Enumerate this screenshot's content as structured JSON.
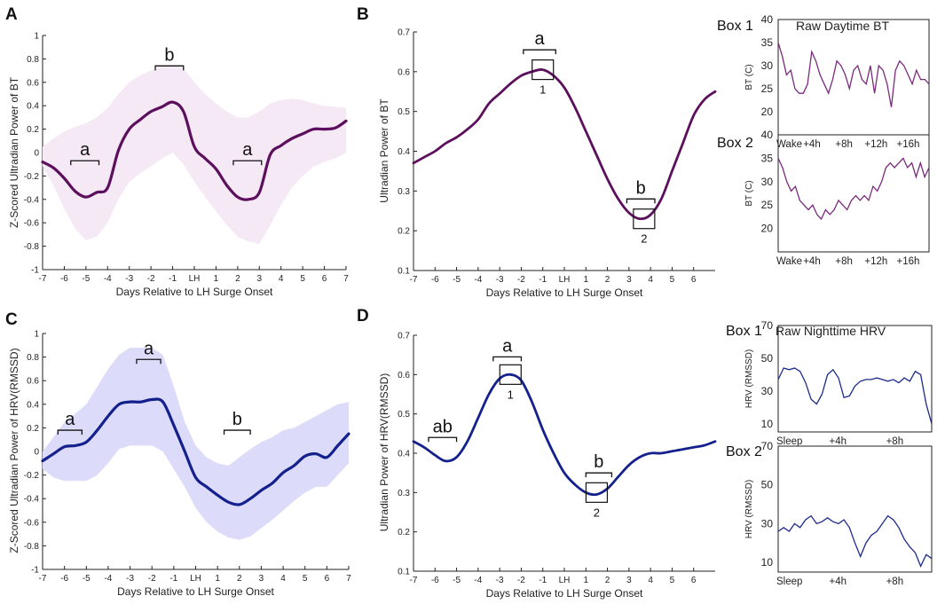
{
  "colors": {
    "bt_line": "#5b0f5c",
    "bt_band": "#f5e9f6",
    "hrv_line": "#14208c",
    "hrv_band": "#dcdcfa",
    "inset_bt": "#7a2a7c",
    "inset_hrv": "#1c2a8c"
  },
  "panel_letters": [
    "A",
    "B",
    "C",
    "D"
  ],
  "chart_data": [
    {
      "id": "A",
      "type": "line",
      "xlabel": "Days Relative to LH Surge Onset",
      "ylabel": "Z-Scored Ultradian Power of BT",
      "xticks": [
        "-7",
        "-6",
        "-5",
        "-4",
        "-3",
        "-2",
        "-1",
        "LH",
        "1",
        "2",
        "3",
        "4",
        "5",
        "6",
        "7"
      ],
      "yticks": [
        "-1",
        "-0.8",
        "-0.6",
        "-0.4",
        "-0.2",
        "0",
        "0.2",
        "0.4",
        "0.6",
        "0.8",
        "1"
      ],
      "xlim": [
        -7,
        7
      ],
      "ylim": [
        -1,
        1
      ],
      "x": [
        -7,
        -6.5,
        -6,
        -5.5,
        -5,
        -4.5,
        -4,
        -3.5,
        -3,
        -2.5,
        -2,
        -1.5,
        -1,
        -0.5,
        0,
        0.5,
        1,
        1.5,
        2,
        2.5,
        3,
        3.5,
        4,
        4.5,
        5,
        5.5,
        6,
        6.5,
        7
      ],
      "y": [
        -0.08,
        -0.13,
        -0.22,
        -0.33,
        -0.38,
        -0.34,
        -0.3,
        0.02,
        0.2,
        0.28,
        0.35,
        0.39,
        0.43,
        0.35,
        0.05,
        -0.05,
        -0.14,
        -0.28,
        -0.38,
        -0.4,
        -0.34,
        -0.02,
        0.06,
        0.12,
        0.16,
        0.2,
        0.2,
        0.21,
        0.27
      ],
      "upper": [
        0.05,
        0.12,
        0.18,
        0.22,
        0.25,
        0.3,
        0.38,
        0.5,
        0.6,
        0.66,
        0.7,
        0.74,
        0.75,
        0.72,
        0.6,
        0.5,
        0.42,
        0.35,
        0.3,
        0.3,
        0.35,
        0.42,
        0.45,
        0.46,
        0.45,
        0.42,
        0.4,
        0.39,
        0.38
      ],
      "lower": [
        -0.12,
        -0.28,
        -0.48,
        -0.65,
        -0.75,
        -0.72,
        -0.6,
        -0.4,
        -0.25,
        -0.18,
        -0.12,
        -0.05,
        0.0,
        -0.1,
        -0.25,
        -0.38,
        -0.5,
        -0.62,
        -0.72,
        -0.76,
        -0.78,
        -0.62,
        -0.45,
        -0.3,
        -0.2,
        -0.12,
        -0.08,
        -0.05,
        0.0
      ],
      "annotations": [
        {
          "label": "a",
          "x0": -5.7,
          "x1": -4.4,
          "y": -0.07
        },
        {
          "label": "b",
          "x0": -1.8,
          "x1": -0.5,
          "y": 0.74
        },
        {
          "label": "a",
          "x0": 1.8,
          "x1": 3.1,
          "y": -0.07
        }
      ]
    },
    {
      "id": "B",
      "type": "line",
      "xlabel": "Days Relative to LH Surge Onset",
      "ylabel": "Ultradian Power of BT",
      "xticks": [
        "-7",
        "-6",
        "-5",
        "-4",
        "-3",
        "-2",
        "-1",
        "LH",
        "1",
        "2",
        "3",
        "4",
        "5",
        "6"
      ],
      "yticks": [
        "0.1",
        "0.2",
        "0.3",
        "0.4",
        "0.5",
        "0.6",
        "0.7"
      ],
      "xlim": [
        -7,
        7
      ],
      "ylim": [
        0.1,
        0.7
      ],
      "x": [
        -7,
        -6.5,
        -6,
        -5.5,
        -5,
        -4.5,
        -4,
        -3.5,
        -3,
        -2.5,
        -2,
        -1.5,
        -1,
        -0.5,
        0,
        0.5,
        1,
        1.5,
        2,
        2.5,
        3,
        3.5,
        4,
        4.5,
        5,
        5.5,
        6,
        6.5,
        7
      ],
      "y": [
        0.37,
        0.385,
        0.4,
        0.42,
        0.435,
        0.455,
        0.48,
        0.52,
        0.545,
        0.57,
        0.59,
        0.6,
        0.605,
        0.59,
        0.56,
        0.51,
        0.45,
        0.39,
        0.33,
        0.28,
        0.245,
        0.23,
        0.24,
        0.28,
        0.35,
        0.42,
        0.49,
        0.53,
        0.55
      ],
      "annotations": [
        {
          "label": "a",
          "x0": -1.9,
          "x1": -0.4,
          "y": 0.655
        },
        {
          "label": "b",
          "x0": 2.9,
          "x1": 4.2,
          "y": 0.28
        }
      ],
      "boxes": [
        {
          "label": "1",
          "x": -1,
          "y": 0.605
        },
        {
          "label": "2",
          "x": 3.7,
          "y": 0.23
        }
      ]
    },
    {
      "id": "C",
      "type": "line",
      "xlabel": "Days Relative to LH Surge Onset",
      "ylabel": "Z-Scored Ultradian Power of HRV(RMSSD)",
      "xticks": [
        "-7",
        "-6",
        "-5",
        "-4",
        "-3",
        "-2",
        "-1",
        "LH",
        "1",
        "2",
        "3",
        "4",
        "5",
        "6",
        "7"
      ],
      "yticks": [
        "-1",
        "-0.8",
        "-0.6",
        "-0.4",
        "-0.2",
        "0",
        "0.2",
        "0.4",
        "0.6",
        "0.8",
        "1"
      ],
      "xlim": [
        -7,
        7
      ],
      "ylim": [
        -1,
        1
      ],
      "x": [
        -7,
        -6.5,
        -6,
        -5.5,
        -5,
        -4.5,
        -4,
        -3.5,
        -3,
        -2.5,
        -2,
        -1.5,
        -1,
        -0.5,
        0,
        0.5,
        1,
        1.5,
        2,
        2.5,
        3,
        3.5,
        4,
        4.5,
        5,
        5.5,
        6,
        6.5,
        7
      ],
      "y": [
        -0.08,
        -0.02,
        0.04,
        0.05,
        0.08,
        0.18,
        0.3,
        0.4,
        0.42,
        0.42,
        0.44,
        0.42,
        0.22,
        0.0,
        -0.22,
        -0.3,
        -0.37,
        -0.43,
        -0.45,
        -0.4,
        -0.33,
        -0.27,
        -0.18,
        -0.12,
        -0.04,
        -0.02,
        -0.05,
        0.05,
        0.15
      ],
      "upper": [
        0.0,
        0.12,
        0.25,
        0.32,
        0.4,
        0.55,
        0.7,
        0.82,
        0.88,
        0.88,
        0.88,
        0.82,
        0.55,
        0.25,
        0.05,
        -0.05,
        -0.1,
        -0.12,
        -0.05,
        0.02,
        0.08,
        0.12,
        0.18,
        0.2,
        0.25,
        0.3,
        0.35,
        0.4,
        0.42
      ],
      "lower": [
        -0.15,
        -0.22,
        -0.25,
        -0.25,
        -0.25,
        -0.2,
        -0.1,
        0.02,
        0.05,
        0.05,
        0.05,
        0.0,
        -0.15,
        -0.3,
        -0.48,
        -0.6,
        -0.68,
        -0.73,
        -0.75,
        -0.72,
        -0.65,
        -0.58,
        -0.5,
        -0.42,
        -0.35,
        -0.3,
        -0.3,
        -0.2,
        -0.1
      ],
      "annotations": [
        {
          "label": "a",
          "x0": -6.3,
          "x1": -5.2,
          "y": 0.18
        },
        {
          "label": "a",
          "x0": -2.7,
          "x1": -1.6,
          "y": 0.78
        },
        {
          "label": "b",
          "x0": 1.3,
          "x1": 2.5,
          "y": 0.18
        }
      ]
    },
    {
      "id": "D",
      "type": "line",
      "xlabel": "Days Relative to LH Surge Onset",
      "ylabel": "Ultradian Power of HRV(RMSSD)",
      "xticks": [
        "-7",
        "-6",
        "-5",
        "-4",
        "-3",
        "-2",
        "-1",
        "LH",
        "1",
        "2",
        "3",
        "4",
        "5",
        "6"
      ],
      "yticks": [
        "0.1",
        "0.2",
        "0.3",
        "0.4",
        "0.5",
        "0.6",
        "0.7"
      ],
      "xlim": [
        -7,
        7
      ],
      "ylim": [
        0.1,
        0.7
      ],
      "x": [
        -7,
        -6.5,
        -6,
        -5.5,
        -5,
        -4.5,
        -4,
        -3.5,
        -3,
        -2.5,
        -2,
        -1.5,
        -1,
        -0.5,
        0,
        0.5,
        1,
        1.5,
        2,
        2.5,
        3,
        3.5,
        4,
        4.5,
        5,
        5.5,
        6,
        6.5,
        7
      ],
      "y": [
        0.43,
        0.415,
        0.395,
        0.38,
        0.39,
        0.43,
        0.49,
        0.55,
        0.59,
        0.6,
        0.585,
        0.53,
        0.46,
        0.4,
        0.35,
        0.32,
        0.3,
        0.295,
        0.31,
        0.34,
        0.37,
        0.39,
        0.4,
        0.4,
        0.405,
        0.41,
        0.415,
        0.42,
        0.43
      ],
      "annotations": [
        {
          "label": "ab",
          "x0": -6.3,
          "x1": -5.0,
          "y": 0.44
        },
        {
          "label": "a",
          "x0": -3.3,
          "x1": -2.0,
          "y": 0.645
        },
        {
          "label": "b",
          "x0": 1.0,
          "x1": 2.2,
          "y": 0.35
        }
      ],
      "boxes": [
        {
          "label": "1",
          "x": -2.5,
          "y": 0.6
        },
        {
          "label": "2",
          "x": 1.5,
          "y": 0.3
        }
      ]
    }
  ],
  "insets": {
    "bt_title": "Raw Daytime BT",
    "hrv_title": "Raw Nighttime HRV",
    "bt_ylabel": "BT (C)",
    "hrv_ylabel": "HRV (RMSSD)",
    "bt_yticks": [
      "20",
      "25",
      "30",
      "35",
      "40"
    ],
    "hrv_yticks": [
      "10",
      "30",
      "50",
      "70"
    ],
    "bt_xticks": [
      "Wake",
      "+4h",
      "+8h",
      "+12h",
      "+16h"
    ],
    "hrv_xticks": [
      "Sleep",
      "+4h",
      "+8h"
    ],
    "bt_box1": {
      "label": "Box 1",
      "values": [
        35,
        32,
        28,
        29,
        25,
        24,
        24,
        26,
        33,
        31,
        28,
        26,
        24,
        27,
        31,
        30,
        28,
        25,
        29,
        30,
        27,
        26,
        30,
        24,
        30,
        29,
        26,
        21,
        29,
        31,
        30,
        28,
        26,
        29,
        27,
        27,
        26
      ]
    },
    "bt_box2": {
      "label": "Box 2",
      "values": [
        35,
        33,
        30,
        28,
        29,
        26,
        25,
        24,
        25,
        23,
        22,
        24,
        23,
        24,
        26,
        25,
        24,
        26,
        27,
        26,
        27,
        26,
        29,
        28,
        30,
        33,
        34,
        33,
        34,
        35,
        33,
        34,
        31,
        34,
        31,
        33
      ]
    },
    "hrv_box1": {
      "label": "Box 1",
      "values": [
        37,
        44,
        43,
        44,
        42,
        35,
        25,
        22,
        28,
        40,
        43,
        38,
        26,
        27,
        33,
        36,
        37,
        37,
        38,
        37,
        36,
        37,
        35,
        38,
        36,
        42,
        40,
        22,
        10
      ]
    },
    "hrv_box2": {
      "label": "Box 2",
      "values": [
        26,
        28,
        26,
        30,
        28,
        32,
        34,
        30,
        31,
        33,
        31,
        30,
        32,
        28,
        20,
        13,
        20,
        24,
        26,
        30,
        34,
        32,
        28,
        22,
        18,
        15,
        8,
        14,
        12
      ]
    }
  }
}
